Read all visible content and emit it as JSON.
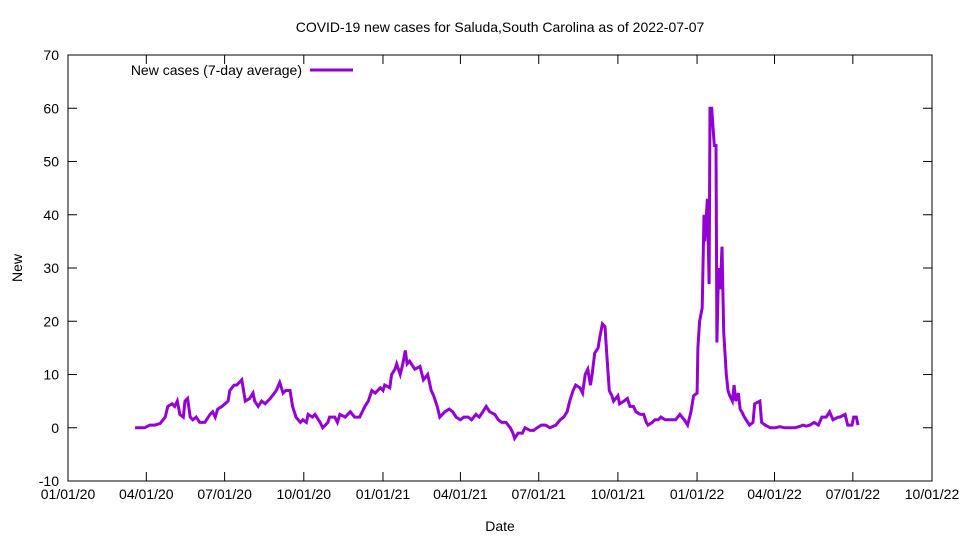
{
  "chart_data": {
    "type": "line",
    "title": "COVID-19 new cases for Saluda,South Carolina as of 2022-07-07",
    "xlabel": "Date",
    "ylabel": "New",
    "ylim": [
      -10,
      70
    ],
    "yticks": [
      -10,
      0,
      10,
      20,
      30,
      40,
      50,
      60,
      70
    ],
    "x_unit": "days since 2020-01-01",
    "xlim": [
      0,
      1004
    ],
    "xticks": [
      {
        "day": 0,
        "label": "01/01/20"
      },
      {
        "day": 91,
        "label": "04/01/20"
      },
      {
        "day": 182,
        "label": "07/01/20"
      },
      {
        "day": 274,
        "label": "10/01/20"
      },
      {
        "day": 366,
        "label": "01/01/21"
      },
      {
        "day": 456,
        "label": "04/01/21"
      },
      {
        "day": 547,
        "label": "07/01/21"
      },
      {
        "day": 639,
        "label": "10/01/21"
      },
      {
        "day": 731,
        "label": "01/01/22"
      },
      {
        "day": 821,
        "label": "04/01/22"
      },
      {
        "day": 912,
        "label": "07/01/22"
      },
      {
        "day": 1004,
        "label": "10/01/22"
      }
    ],
    "legend_position": "top-left",
    "grid": false,
    "series": [
      {
        "name": "New cases (7-day average)",
        "color": "#9400d3",
        "x": [
          78,
          89,
          95,
          101,
          107,
          113,
          116,
          121,
          124,
          127,
          130,
          134,
          136,
          139,
          142,
          145,
          149,
          153,
          159,
          165,
          168,
          171,
          174,
          179,
          186,
          188,
          193,
          196,
          202,
          206,
          211,
          215,
          217,
          221,
          225,
          229,
          235,
          242,
          246,
          250,
          253,
          258,
          261,
          265,
          270,
          273,
          277,
          279,
          284,
          287,
          293,
          296,
          302,
          304,
          310,
          313,
          316,
          322,
          328,
          333,
          339,
          345,
          349,
          353,
          357,
          363,
          366,
          368,
          374,
          376,
          380,
          382,
          386,
          389,
          392,
          394,
          397,
          403,
          409,
          413,
          418,
          422,
          425,
          429,
          432,
          438,
          443,
          447,
          451,
          456,
          460,
          465,
          469,
          474,
          478,
          482,
          486,
          490,
          496,
          500,
          504,
          509,
          514,
          517,
          519,
          523,
          528,
          531,
          537,
          541,
          545,
          550,
          555,
          560,
          567,
          572,
          576,
          580,
          583,
          587,
          590,
          595,
          598,
          601,
          604,
          607,
          609,
          612,
          616,
          618,
          621,
          624,
          626,
          629,
          632,
          634,
          639,
          641,
          646,
          650,
          653,
          657,
          660,
          665,
          669,
          672,
          674,
          679,
          682,
          686,
          689,
          694,
          700,
          706,
          711,
          716,
          720,
          724,
          727,
          731,
          732,
          734,
          737,
          739,
          740,
          743,
          745,
          746,
          748,
          751,
          753,
          754,
          756,
          758,
          760,
          762,
          765,
          767,
          769,
          772,
          774,
          776,
          779,
          781,
          783,
          786,
          788,
          790,
          792,
          796,
          798,
          804,
          806,
          810,
          816,
          822,
          827,
          833,
          839,
          845,
          851,
          854,
          858,
          862,
          867,
          872,
          876,
          881,
          885,
          889,
          895,
          897,
          903,
          906,
          909,
          911,
          913,
          916,
          918
        ],
        "y": [
          0,
          0,
          0.5,
          0.5,
          0.8,
          2,
          4,
          4.5,
          4,
          5,
          2.5,
          2,
          5,
          5.5,
          2,
          1.5,
          2,
          1,
          1,
          2.5,
          3,
          2,
          3.5,
          4,
          5,
          7,
          8,
          8,
          9,
          5,
          5.5,
          6.5,
          5,
          4,
          5,
          4.5,
          5.5,
          7,
          8.5,
          6.5,
          7,
          7,
          4,
          2,
          1,
          1.5,
          1,
          2.5,
          2,
          2.5,
          1,
          0,
          1,
          2,
          2,
          1,
          2.5,
          2,
          3,
          2,
          2,
          4,
          5,
          7,
          6.5,
          7.5,
          7,
          8,
          7.5,
          10,
          11,
          12,
          10,
          12,
          14.5,
          12,
          12.5,
          11,
          11.5,
          9,
          10,
          7,
          6,
          4,
          2,
          3,
          3.5,
          3,
          2,
          1.5,
          2,
          2,
          1.5,
          2.5,
          2,
          3,
          4,
          3,
          2.5,
          1.5,
          1,
          1,
          0,
          -1,
          -2,
          -1,
          -1,
          0,
          -0.5,
          -0.5,
          0,
          0.5,
          0.5,
          0,
          0.5,
          1.5,
          2,
          3,
          5,
          7,
          8,
          7.5,
          6.5,
          10,
          11,
          8,
          10,
          14,
          15,
          17,
          19.5,
          19,
          14,
          7,
          6,
          5,
          6,
          4.5,
          5,
          5.5,
          4,
          4,
          3,
          2.5,
          2.5,
          1,
          0.5,
          1,
          1.5,
          1.5,
          2,
          1.5,
          1.5,
          1.5,
          2.5,
          1.5,
          0.5,
          3,
          6,
          6.5,
          15,
          20,
          22.5,
          40,
          35,
          43,
          27,
          60,
          60,
          53,
          53,
          16,
          30,
          26,
          34,
          18,
          10,
          7,
          6,
          5,
          8,
          5,
          6.5,
          3.5,
          3,
          2,
          1.5,
          1,
          0.5,
          1,
          4.5,
          5,
          1,
          0.5,
          0,
          0,
          0.2,
          0,
          0,
          0,
          0.3,
          0.5,
          0.3,
          0.5,
          1,
          0.5,
          2,
          2,
          3,
          1.5,
          2,
          2,
          2.5,
          0.5,
          0.5,
          0.5,
          2,
          2,
          0.5
        ]
      }
    ]
  }
}
